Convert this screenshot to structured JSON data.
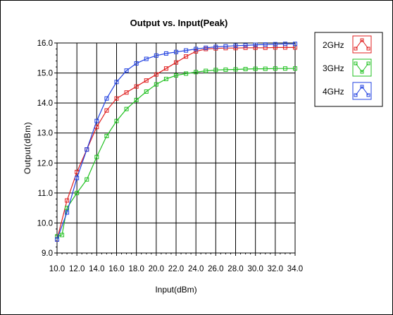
{
  "chart_data": {
    "type": "line",
    "title": "Output vs. Input(Peak)",
    "xlabel": "Input(dBm)",
    "ylabel": "Output(dBm)",
    "xlim": [
      10,
      34
    ],
    "ylim": [
      9,
      16
    ],
    "xticks": [
      "10.0",
      "12.0",
      "14.0",
      "16.0",
      "18.0",
      "20.0",
      "22.0",
      "24.0",
      "26.0",
      "28.0",
      "30.0",
      "32.0",
      "34.0"
    ],
    "yticks": [
      "9.0",
      "10.0",
      "11.0",
      "12.0",
      "13.0",
      "14.0",
      "15.0",
      "16.0"
    ],
    "grid": true,
    "legend": "right",
    "series": [
      {
        "name": "2GHz",
        "color": "#e02020",
        "x": [
          10,
          11,
          12,
          13,
          14,
          15,
          16,
          17,
          18,
          19,
          20,
          21,
          22,
          23,
          24,
          25,
          26,
          27,
          28,
          29,
          30,
          31,
          32,
          33,
          34
        ],
        "y": [
          9.45,
          10.75,
          11.7,
          12.45,
          13.2,
          13.75,
          14.15,
          14.35,
          14.55,
          14.75,
          14.95,
          15.15,
          15.35,
          15.55,
          15.72,
          15.8,
          15.82,
          15.83,
          15.83,
          15.84,
          15.84,
          15.84,
          15.85,
          15.85,
          15.85
        ]
      },
      {
        "name": "3GHz",
        "color": "#20c020",
        "x": [
          10,
          10.5,
          11,
          12,
          13,
          14,
          15,
          16,
          17,
          18,
          19,
          20,
          21,
          22,
          23,
          24,
          25,
          26,
          27,
          28,
          29,
          30,
          31,
          32,
          33,
          34
        ],
        "y": [
          9.55,
          9.6,
          10.5,
          11.0,
          11.45,
          12.2,
          12.9,
          13.4,
          13.8,
          14.1,
          14.38,
          14.62,
          14.8,
          14.92,
          14.98,
          15.03,
          15.07,
          15.1,
          15.11,
          15.12,
          15.13,
          15.14,
          15.14,
          15.15,
          15.15,
          15.15
        ]
      },
      {
        "name": "4GHz",
        "color": "#2040e0",
        "x": [
          10,
          11,
          12,
          13,
          14,
          15,
          16,
          17,
          18,
          19,
          20,
          21,
          22,
          23,
          24,
          25,
          26,
          27,
          28,
          29,
          30,
          31,
          32,
          33,
          34
        ],
        "y": [
          9.45,
          10.35,
          11.5,
          12.45,
          13.4,
          14.15,
          14.7,
          15.08,
          15.32,
          15.47,
          15.58,
          15.65,
          15.7,
          15.75,
          15.8,
          15.84,
          15.87,
          15.89,
          15.91,
          15.92,
          15.94,
          15.95,
          15.96,
          15.97,
          15.97
        ]
      }
    ]
  }
}
